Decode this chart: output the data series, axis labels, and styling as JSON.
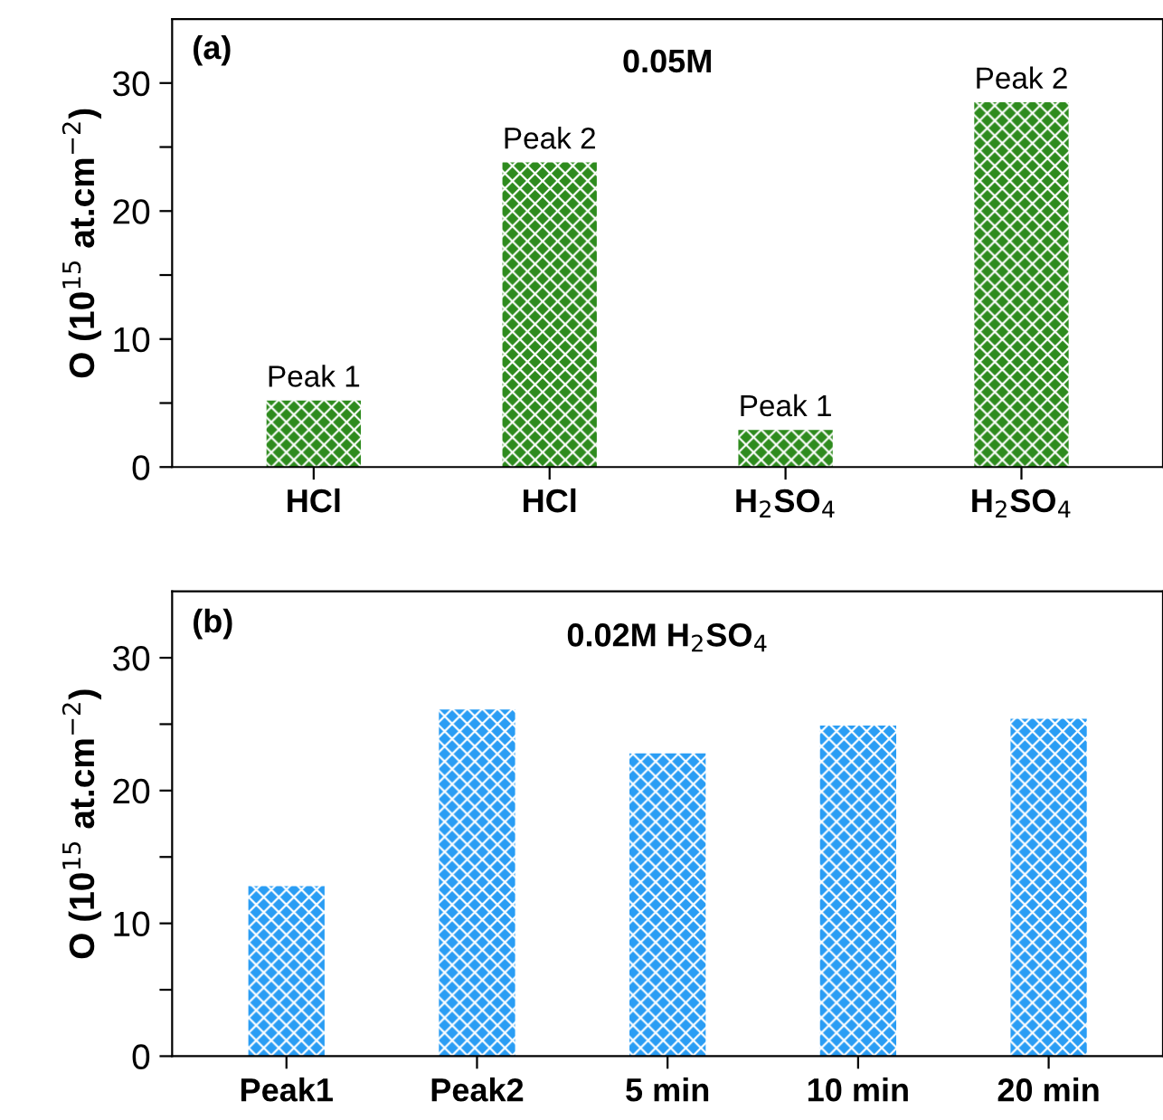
{
  "chart_data": [
    {
      "type": "bar",
      "title": "0.05M",
      "ylabel": "O (10$^{15}$ at.cm$^{−2}$)",
      "annotations": [
        "(a)"
      ],
      "categories": [
        "HCl",
        "HCl",
        "H$_{2}$SO$_{4}$",
        "H$_{2}$SO$_{4}$"
      ],
      "values": [
        5.2,
        23.8,
        2.9,
        28.5
      ],
      "value_labels": [
        "Peak 1",
        "Peak 2",
        "Peak 1",
        "Peak 2"
      ],
      "color": "#2e8b1e",
      "ylim": [
        0,
        35
      ],
      "yticks": [
        0,
        {
          "value": 5,
          "label": null
        },
        10,
        {
          "value": 15,
          "label": null
        },
        20,
        {
          "value": 25,
          "label": null
        },
        30
      ],
      "grid": false,
      "legend": false
    },
    {
      "type": "bar",
      "title": "0.02M H$_{2}$SO$_{4}$",
      "ylabel": "O (10$^{15}$ at.cm$^{−2}$)",
      "annotations": [
        "(b)"
      ],
      "categories": [
        "Peak1",
        "Peak2",
        "5 min",
        "10 min",
        "20 min"
      ],
      "values": [
        12.8,
        26.1,
        22.8,
        24.9,
        25.4
      ],
      "color": "#2a9df4",
      "ylim": [
        0,
        35
      ],
      "yticks": [
        0,
        {
          "value": 5,
          "label": null
        },
        10,
        {
          "value": 15,
          "label": null
        },
        20,
        {
          "value": 25,
          "label": null
        },
        30
      ],
      "grid": false,
      "legend": false
    }
  ]
}
